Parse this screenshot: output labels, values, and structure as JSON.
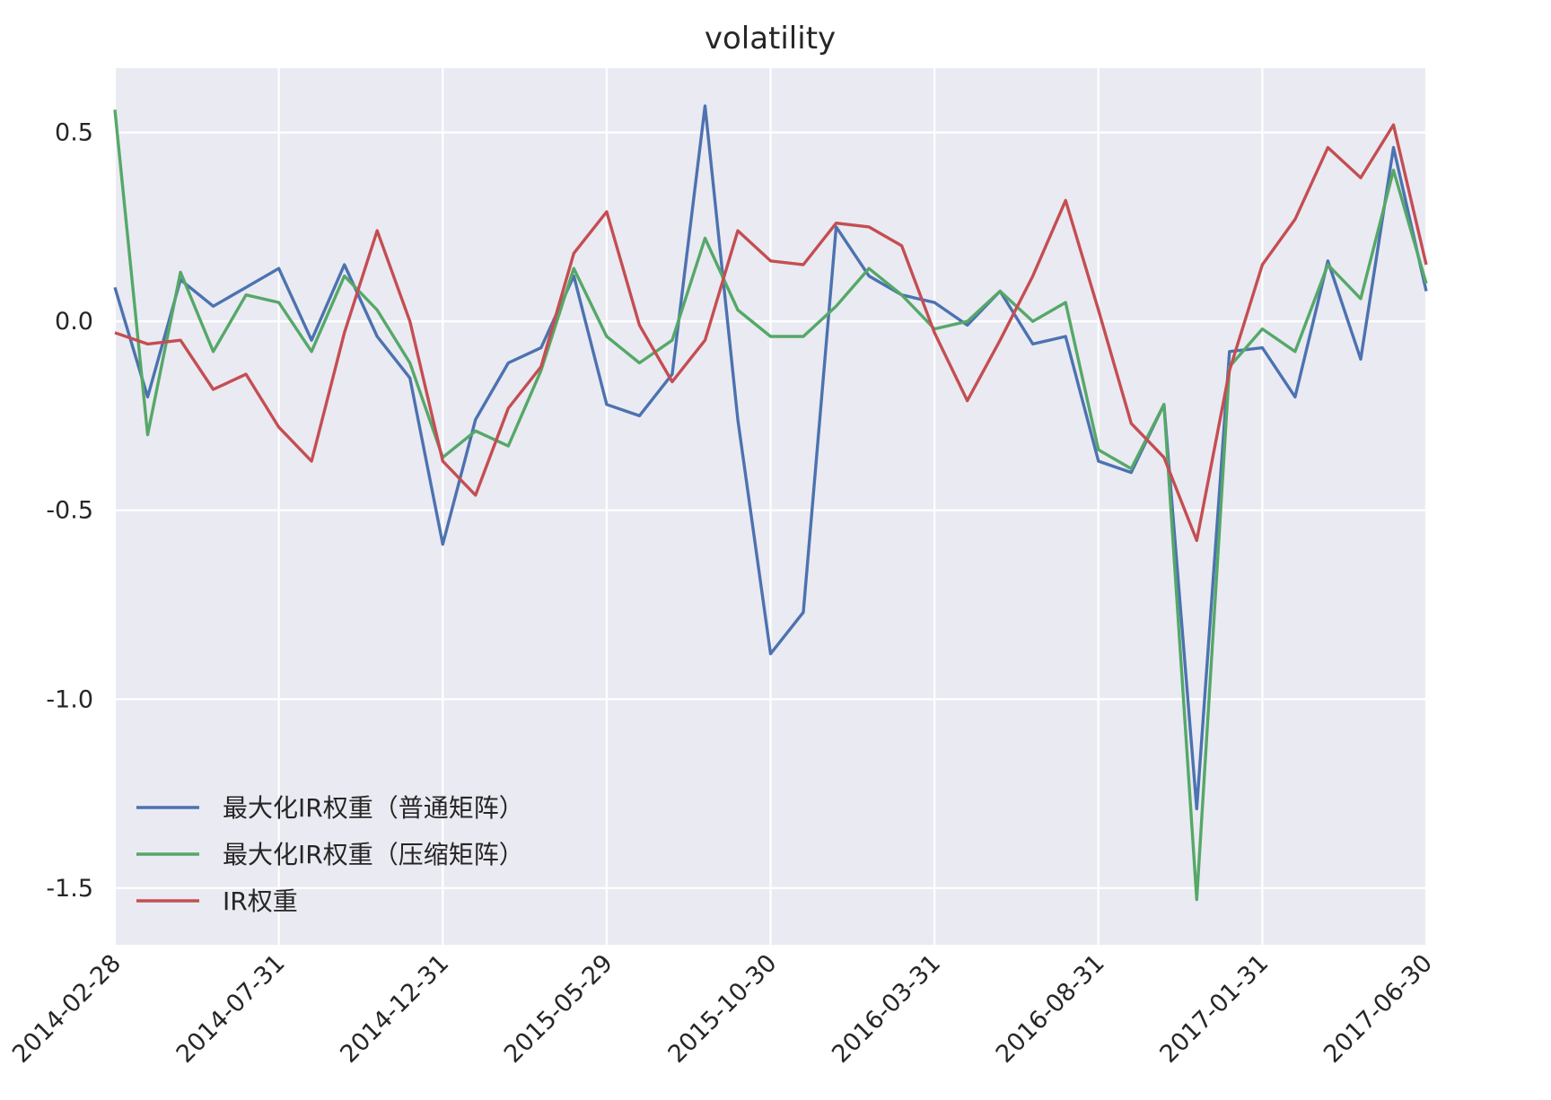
{
  "chart_data": {
    "type": "line",
    "title": "volatility",
    "xlabel": "",
    "ylabel": "",
    "x": [
      "2014-02-28",
      "2014-03-31",
      "2014-04-30",
      "2014-05-30",
      "2014-06-30",
      "2014-07-31",
      "2014-08-29",
      "2014-09-30",
      "2014-10-31",
      "2014-11-28",
      "2014-12-31",
      "2015-01-30",
      "2015-02-27",
      "2015-03-31",
      "2015-04-30",
      "2015-05-29",
      "2015-06-30",
      "2015-07-31",
      "2015-08-31",
      "2015-09-30",
      "2015-10-30",
      "2015-11-30",
      "2015-12-31",
      "2016-01-29",
      "2016-02-29",
      "2016-03-31",
      "2016-04-29",
      "2016-05-31",
      "2016-06-30",
      "2016-07-29",
      "2016-08-31",
      "2016-09-30",
      "2016-10-31",
      "2016-11-30",
      "2016-12-30",
      "2017-01-31",
      "2017-02-28",
      "2017-03-31",
      "2017-04-28",
      "2017-05-31",
      "2017-06-30"
    ],
    "xticks": [
      "2014-02-28",
      "2014-07-31",
      "2014-12-31",
      "2015-05-29",
      "2015-10-30",
      "2016-03-31",
      "2016-08-31",
      "2017-01-31",
      "2017-06-30"
    ],
    "yticks": [
      0.5,
      0.0,
      -0.5,
      -1.0,
      -1.5
    ],
    "ytick_labels": [
      "0.5",
      "0.0",
      "-0.5",
      "-1.0",
      "-1.5"
    ],
    "ylim": [
      -1.65,
      0.67
    ],
    "grid": true,
    "legend_position": "lower-left",
    "series": [
      {
        "name": "最大化IR权重（普通矩阵）",
        "color": "#4c72b0",
        "values": [
          0.09,
          -0.2,
          0.11,
          0.04,
          0.09,
          0.14,
          -0.05,
          0.15,
          -0.04,
          -0.15,
          -0.59,
          -0.26,
          -0.11,
          -0.07,
          0.12,
          -0.22,
          -0.25,
          -0.14,
          0.57,
          -0.26,
          -0.88,
          -0.77,
          0.25,
          0.12,
          0.07,
          0.05,
          -0.01,
          0.08,
          -0.06,
          -0.04,
          -0.37,
          -0.4,
          -0.22,
          -1.29,
          -0.08,
          -0.07,
          -0.2,
          0.16,
          -0.1,
          0.46,
          0.08
        ]
      },
      {
        "name": "最大化IR权重（压缩矩阵）",
        "color": "#55a868",
        "values": [
          0.56,
          -0.3,
          0.13,
          -0.08,
          0.07,
          0.05,
          -0.08,
          0.12,
          0.03,
          -0.11,
          -0.36,
          -0.29,
          -0.33,
          -0.13,
          0.14,
          -0.04,
          -0.11,
          -0.05,
          0.22,
          0.03,
          -0.04,
          -0.04,
          0.04,
          0.14,
          0.07,
          -0.02,
          0.0,
          0.08,
          0.0,
          0.05,
          -0.34,
          -0.39,
          -0.22,
          -1.53,
          -0.12,
          -0.02,
          -0.08,
          0.15,
          0.06,
          0.4,
          0.1
        ]
      },
      {
        "name": "IR权重",
        "color": "#c44e52",
        "values": [
          -0.03,
          -0.06,
          -0.05,
          -0.18,
          -0.14,
          -0.28,
          -0.37,
          -0.03,
          0.24,
          0.0,
          -0.37,
          -0.46,
          -0.23,
          -0.12,
          0.18,
          0.29,
          -0.01,
          -0.16,
          -0.05,
          0.24,
          0.16,
          0.15,
          0.26,
          0.25,
          0.2,
          -0.03,
          -0.21,
          -0.05,
          0.12,
          0.32,
          0.03,
          -0.27,
          -0.36,
          -0.58,
          -0.13,
          0.15,
          0.27,
          0.46,
          0.38,
          0.52,
          0.15
        ]
      }
    ]
  }
}
